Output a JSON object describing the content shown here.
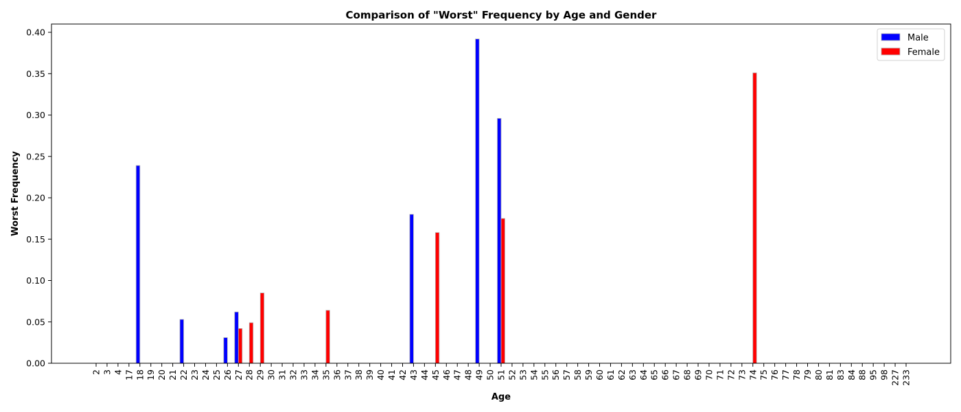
{
  "chart_data": {
    "type": "bar",
    "title": "Comparison of \"Worst\" Frequency by Age and Gender",
    "xlabel": "Age",
    "ylabel": "Worst Frequency",
    "ylim": [
      0,
      0.41
    ],
    "yticks": [
      "0.00",
      "0.05",
      "0.10",
      "0.15",
      "0.20",
      "0.25",
      "0.30",
      "0.35",
      "0.40"
    ],
    "legend_position": "top-right",
    "categories": [
      "2",
      "3",
      "4",
      "17",
      "18",
      "19",
      "20",
      "21",
      "22",
      "23",
      "24",
      "25",
      "26",
      "27",
      "28",
      "29",
      "30",
      "31",
      "32",
      "33",
      "34",
      "35",
      "36",
      "37",
      "38",
      "39",
      "40",
      "41",
      "42",
      "43",
      "44",
      "45",
      "46",
      "47",
      "48",
      "49",
      "50",
      "51",
      "52",
      "53",
      "54",
      "55",
      "56",
      "57",
      "58",
      "59",
      "60",
      "61",
      "62",
      "63",
      "64",
      "65",
      "66",
      "67",
      "68",
      "69",
      "70",
      "71",
      "72",
      "73",
      "74",
      "75",
      "76",
      "77",
      "78",
      "79",
      "80",
      "81",
      "83",
      "84",
      "88",
      "95",
      "98",
      "227",
      "233"
    ],
    "series": [
      {
        "name": "Male",
        "color": "#0000ff",
        "values": [
          0,
          0,
          0,
          0,
          0.239,
          0,
          0,
          0,
          0.053,
          0,
          0,
          0,
          0.031,
          0.062,
          0,
          0,
          0,
          0,
          0,
          0,
          0,
          0,
          0,
          0,
          0,
          0,
          0,
          0,
          0,
          0.18,
          0,
          0,
          0,
          0,
          0,
          0.392,
          0,
          0.296,
          0,
          0,
          0,
          0,
          0,
          0,
          0,
          0,
          0,
          0,
          0,
          0,
          0,
          0,
          0,
          0,
          0,
          0,
          0,
          0,
          0,
          0,
          0,
          0,
          0,
          0,
          0,
          0,
          0,
          0,
          0,
          0,
          0,
          0,
          0,
          0,
          0
        ]
      },
      {
        "name": "Female",
        "color": "#ff0000",
        "values": [
          0,
          0,
          0,
          0,
          0,
          0,
          0,
          0,
          0,
          0,
          0,
          0,
          0,
          0.042,
          0.049,
          0.085,
          0,
          0,
          0,
          0,
          0,
          0.064,
          0,
          0,
          0,
          0,
          0,
          0,
          0,
          0,
          0,
          0.158,
          0,
          0,
          0,
          0,
          0,
          0.175,
          0,
          0,
          0,
          0,
          0,
          0,
          0,
          0,
          0,
          0,
          0,
          0,
          0,
          0,
          0,
          0,
          0,
          0,
          0,
          0,
          0,
          0,
          0.351,
          0,
          0,
          0,
          0,
          0,
          0,
          0,
          0,
          0,
          0,
          0,
          0,
          0,
          0
        ]
      }
    ]
  }
}
